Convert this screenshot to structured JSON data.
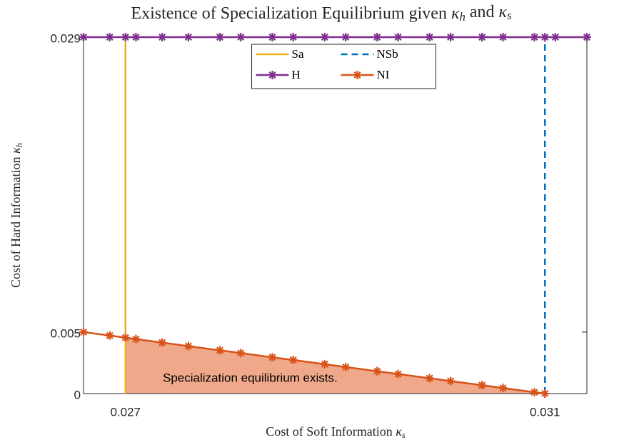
{
  "chart_data": {
    "type": "line",
    "title": "Existence of Specialization Equilibrium given κ_h and κ_s",
    "xlabel": "Cost of Soft Information κ_s",
    "ylabel": "Cost of Hard Information κ_h",
    "xlim": [
      0.0266,
      0.0314
    ],
    "ylim": [
      0,
      0.029
    ],
    "xticks": [
      0.027,
      0.031
    ],
    "yticks": [
      0,
      0.005,
      0.029
    ],
    "legend": "north",
    "series": [
      {
        "name": "Sa",
        "color": "#EDB120",
        "style": "solid",
        "marker": "none",
        "x": [
          0.027,
          0.027
        ],
        "values": [
          0,
          0.029
        ]
      },
      {
        "name": "NSb",
        "color": "#0072BD",
        "style": "dashed",
        "marker": "none",
        "x": [
          0.031,
          0.031
        ],
        "values": [
          0,
          0.029
        ]
      },
      {
        "name": "H",
        "color": "#7E2F8E",
        "style": "solid",
        "marker": "*",
        "x": [
          0.0266,
          0.02685,
          0.027,
          0.0271,
          0.02735,
          0.0276,
          0.0279,
          0.0281,
          0.0284,
          0.0286,
          0.0289,
          0.0291,
          0.0294,
          0.0296,
          0.0299,
          0.0301,
          0.0304,
          0.0306,
          0.0309,
          0.031,
          0.0311,
          0.0314
        ],
        "values": [
          0.029,
          0.029,
          0.029,
          0.029,
          0.029,
          0.029,
          0.029,
          0.029,
          0.029,
          0.029,
          0.029,
          0.029,
          0.029,
          0.029,
          0.029,
          0.029,
          0.029,
          0.029,
          0.029,
          0.029,
          0.029,
          0.029
        ]
      },
      {
        "name": "NI",
        "color": "#D95319",
        "style": "solid",
        "marker": "*",
        "x": [
          0.0266,
          0.02685,
          0.027,
          0.0271,
          0.02735,
          0.0276,
          0.0279,
          0.0281,
          0.0284,
          0.0286,
          0.0289,
          0.0291,
          0.0294,
          0.0296,
          0.0299,
          0.0301,
          0.0304,
          0.0306,
          0.0309,
          0.031
        ],
        "values": [
          0.005,
          0.00472,
          0.00455,
          0.00443,
          0.00415,
          0.00386,
          0.00352,
          0.0033,
          0.00295,
          0.00273,
          0.00239,
          0.00216,
          0.00182,
          0.00159,
          0.00125,
          0.00102,
          0.00068,
          0.00045,
          0.00011,
          0
        ]
      }
    ],
    "region": {
      "color": "#EFA98A",
      "annotation": "Specialization equilibrium exists."
    }
  }
}
